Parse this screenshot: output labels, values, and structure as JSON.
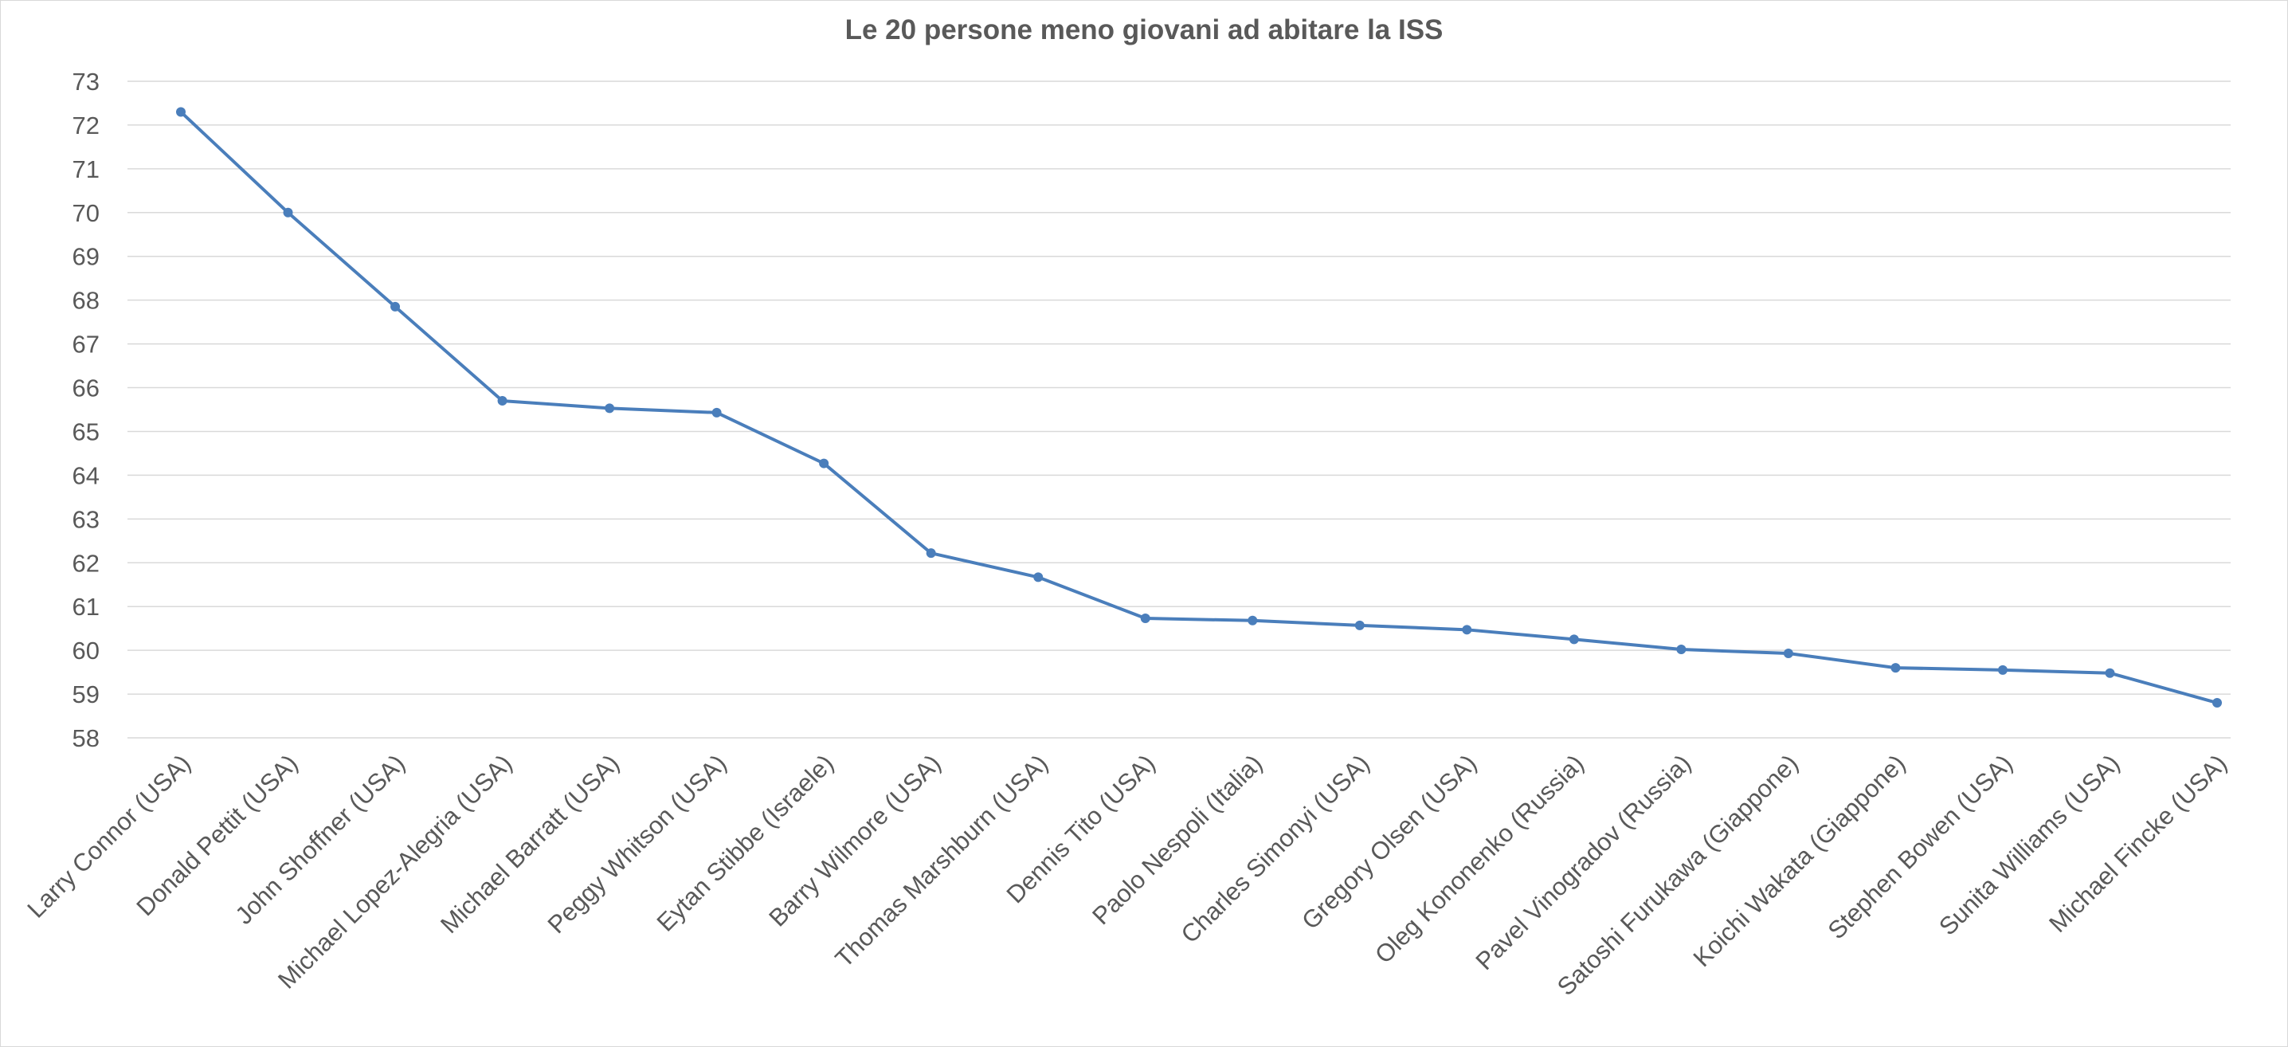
{
  "chart_data": {
    "type": "line",
    "title": "Le 20 persone meno giovani ad abitare la ISS",
    "xlabel": "",
    "ylabel": "",
    "ylim": [
      58,
      73
    ],
    "yticks": [
      58,
      59,
      60,
      61,
      62,
      63,
      64,
      65,
      66,
      67,
      68,
      69,
      70,
      71,
      72,
      73
    ],
    "grid": true,
    "legend": "none",
    "line_color": "#4a7ebb",
    "categories": [
      "Larry Connor (USA)",
      "Donald Pettit (USA)",
      "John Shoffner (USA)",
      "Michael Lopez-Alegria (USA)",
      "Michael Barratt (USA)",
      "Peggy Whitson (USA)",
      "Eytan Stibbe (Israele)",
      "Barry Wilmore (USA)",
      "Thomas Marshburn (USA)",
      "Dennis Tito (USA)",
      "Paolo Nespoli (Italia)",
      "Charles Simonyi (USA)",
      "Gregory Olsen (USA)",
      "Oleg Kononenko (Russia)",
      "Pavel Vinogradov (Russia)",
      "Satoshi Furukawa (Giappone)",
      "Koichi Wakata (Giappone)",
      "Stephen Bowen (USA)",
      "Sunita Williams (USA)",
      "Michael Fincke (USA)"
    ],
    "series": [
      {
        "values": [
          72.3,
          70.0,
          67.85,
          65.7,
          65.53,
          65.43,
          64.27,
          62.22,
          61.67,
          60.73,
          60.68,
          60.57,
          60.47,
          60.25,
          60.02,
          59.93,
          59.6,
          59.55,
          59.48,
          58.8
        ]
      }
    ]
  }
}
